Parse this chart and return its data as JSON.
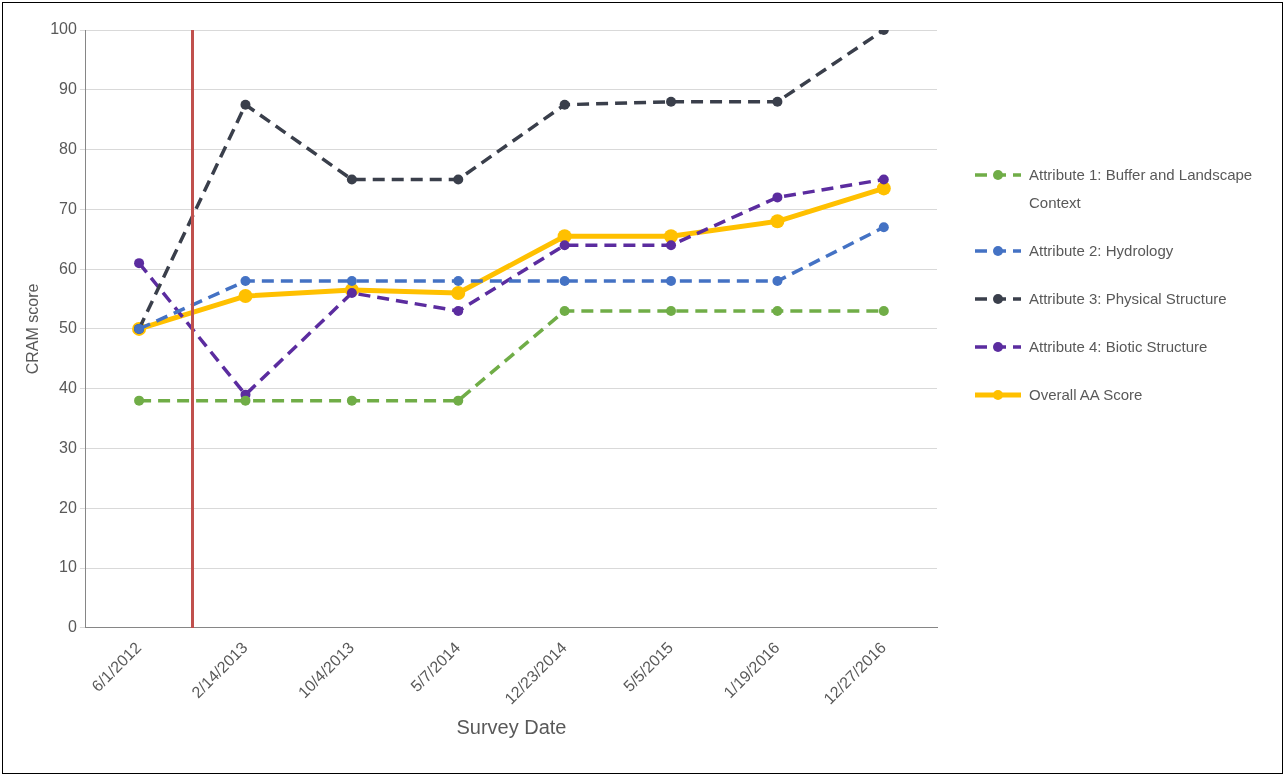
{
  "chart_data": {
    "type": "line",
    "xlabel": "Survey Date",
    "ylabel": "CRAM score",
    "categories": [
      "6/1/2012",
      "2/14/2013",
      "10/4/2013",
      "5/7/2014",
      "12/23/2014",
      "5/5/2015",
      "1/19/2016",
      "12/27/2016"
    ],
    "series": [
      {
        "name": "Attribute 1: Buffer and Landscape Context",
        "color": "#70ad47",
        "line_style": "dashed",
        "values": [
          38,
          38,
          38,
          38,
          53,
          53,
          53,
          53
        ]
      },
      {
        "name": "Attribute 2: Hydrology",
        "color": "#4472c4",
        "line_style": "dashed",
        "values": [
          50,
          58,
          58,
          58,
          58,
          58,
          58,
          67
        ]
      },
      {
        "name": "Attribute 3: Physical Structure",
        "color": "#3a3f4b",
        "line_style": "dashed",
        "values": [
          50,
          87.5,
          75,
          75,
          87.5,
          88,
          88,
          100
        ]
      },
      {
        "name": "Attribute 4: Biotic Structure",
        "color": "#5b2c9f",
        "line_style": "dashed",
        "values": [
          61,
          39,
          56,
          53,
          64,
          64,
          72,
          75
        ]
      },
      {
        "name": "Overall AA Score",
        "color": "#ffc000",
        "line_style": "solid",
        "values": [
          50,
          55.5,
          56.5,
          56,
          65.5,
          65.5,
          68,
          73.5
        ]
      }
    ],
    "ylim": [
      0,
      100
    ],
    "yticks": [
      0,
      10,
      20,
      30,
      40,
      50,
      60,
      70,
      80,
      90,
      100
    ],
    "grid": "y",
    "legend": "right",
    "marker": "circle"
  }
}
